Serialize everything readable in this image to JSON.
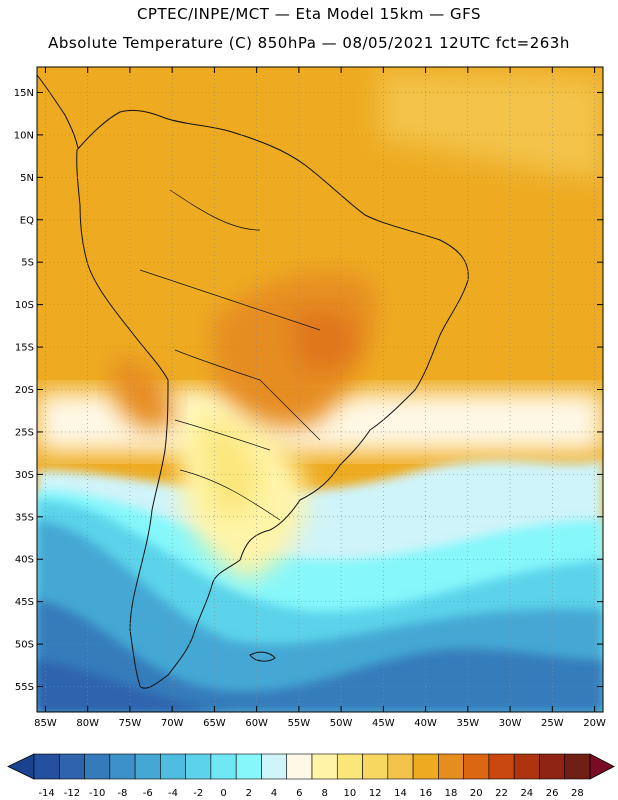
{
  "header": {
    "line1": "CPTEC/INPE/MCT —  Eta Model 15km — GFS",
    "line2": "Absolute Temperature (C) 850hPa — 08/05/2021 12UTC fct=263h"
  },
  "axes": {
    "lat_labels": [
      "15N",
      "10N",
      "5N",
      "EQ",
      "5S",
      "10S",
      "15S",
      "20S",
      "25S",
      "30S",
      "35S",
      "40S",
      "45S",
      "50S",
      "55S"
    ],
    "lat_values": [
      15,
      10,
      5,
      0,
      -5,
      -10,
      -15,
      -20,
      -25,
      -30,
      -35,
      -40,
      -45,
      -50,
      -55
    ],
    "lon_labels": [
      "85W",
      "80W",
      "75W",
      "70W",
      "65W",
      "60W",
      "55W",
      "50W",
      "45W",
      "40W",
      "35W",
      "30W",
      "25W",
      "20W"
    ],
    "lon_values": [
      -85,
      -80,
      -75,
      -70,
      -65,
      -60,
      -55,
      -50,
      -45,
      -40,
      -35,
      -30,
      -25,
      -20
    ],
    "lat_range": [
      -58,
      18
    ],
    "lon_range": [
      -86,
      -19
    ]
  },
  "colorbar": {
    "labels": [
      "-14",
      "-12",
      "-10",
      "-8",
      "-6",
      "-4",
      "-2",
      "0",
      "2",
      "4",
      "6",
      "8",
      "10",
      "12",
      "14",
      "16",
      "18",
      "20",
      "22",
      "24",
      "26",
      "28"
    ],
    "colors": [
      "#1a4290",
      "#25509f",
      "#2e64ad",
      "#357bbb",
      "#3c92c8",
      "#45a8d4",
      "#4fbde0",
      "#5cd3ea",
      "#6fe8f4",
      "#86f7fb",
      "#cff4fa",
      "#fff8e6",
      "#fff4a8",
      "#fbe67a",
      "#f7d760",
      "#f2c24a",
      "#eeab22",
      "#e68d20",
      "#dc6713",
      "#c8480f",
      "#ae3410",
      "#8f2414",
      "#6f1f14",
      "#7a0a25"
    ]
  },
  "colors": {
    "coastline": "#111111",
    "grid": "#888888"
  }
}
